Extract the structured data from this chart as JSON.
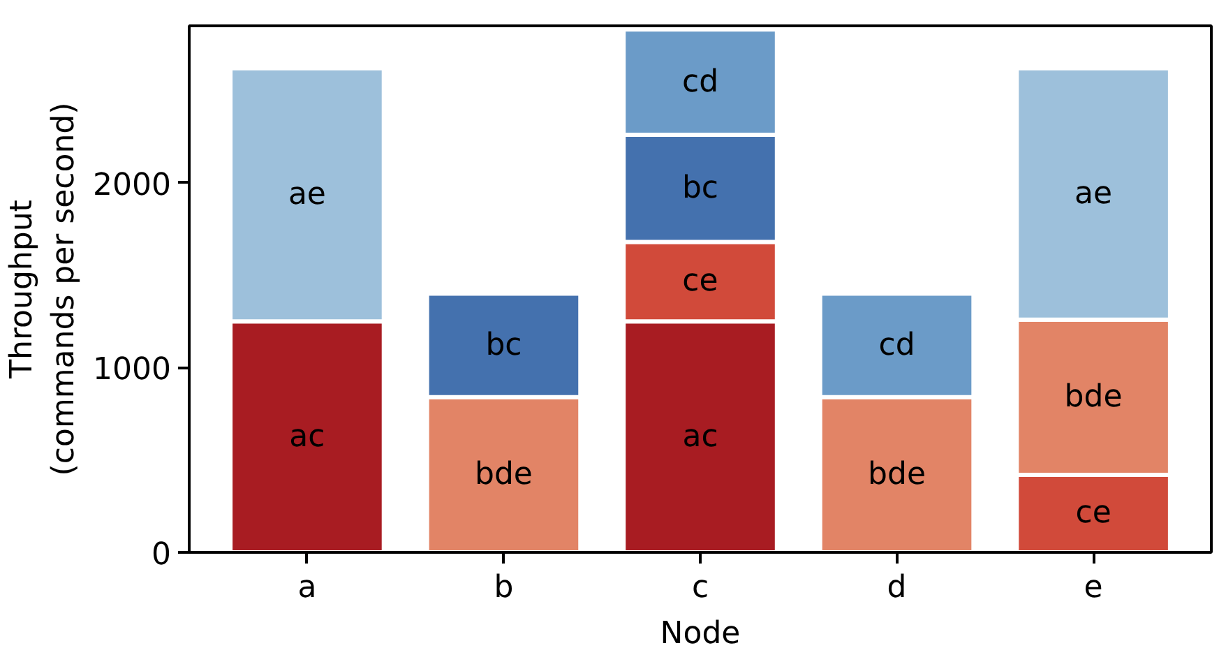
{
  "chart_data": {
    "type": "bar",
    "stacked": true,
    "xlabel": "Node",
    "ylabel": "Throughput\n(commands per second)",
    "categories": [
      "a",
      "b",
      "c",
      "d",
      "e"
    ],
    "series": [
      {
        "name": "ac",
        "color": "#a81c22",
        "values": [
          1250,
          null,
          1250,
          null,
          null
        ]
      },
      {
        "name": "ce",
        "color": "#d14a3a",
        "values": [
          null,
          null,
          430,
          null,
          420
        ]
      },
      {
        "name": "bde",
        "color": "#e28466",
        "values": [
          null,
          840,
          null,
          840,
          840
        ]
      },
      {
        "name": "bc",
        "color": "#4471ae",
        "values": [
          null,
          560,
          580,
          null,
          null
        ]
      },
      {
        "name": "cd",
        "color": "#6b9bc8",
        "values": [
          null,
          null,
          570,
          560,
          null
        ]
      },
      {
        "name": "ae",
        "color": "#9dc0db",
        "values": [
          1370,
          null,
          null,
          null,
          1360
        ]
      }
    ],
    "ylim": [
      0,
      2850
    ],
    "yticks": [
      0,
      1000,
      2000
    ],
    "grid": false
  }
}
